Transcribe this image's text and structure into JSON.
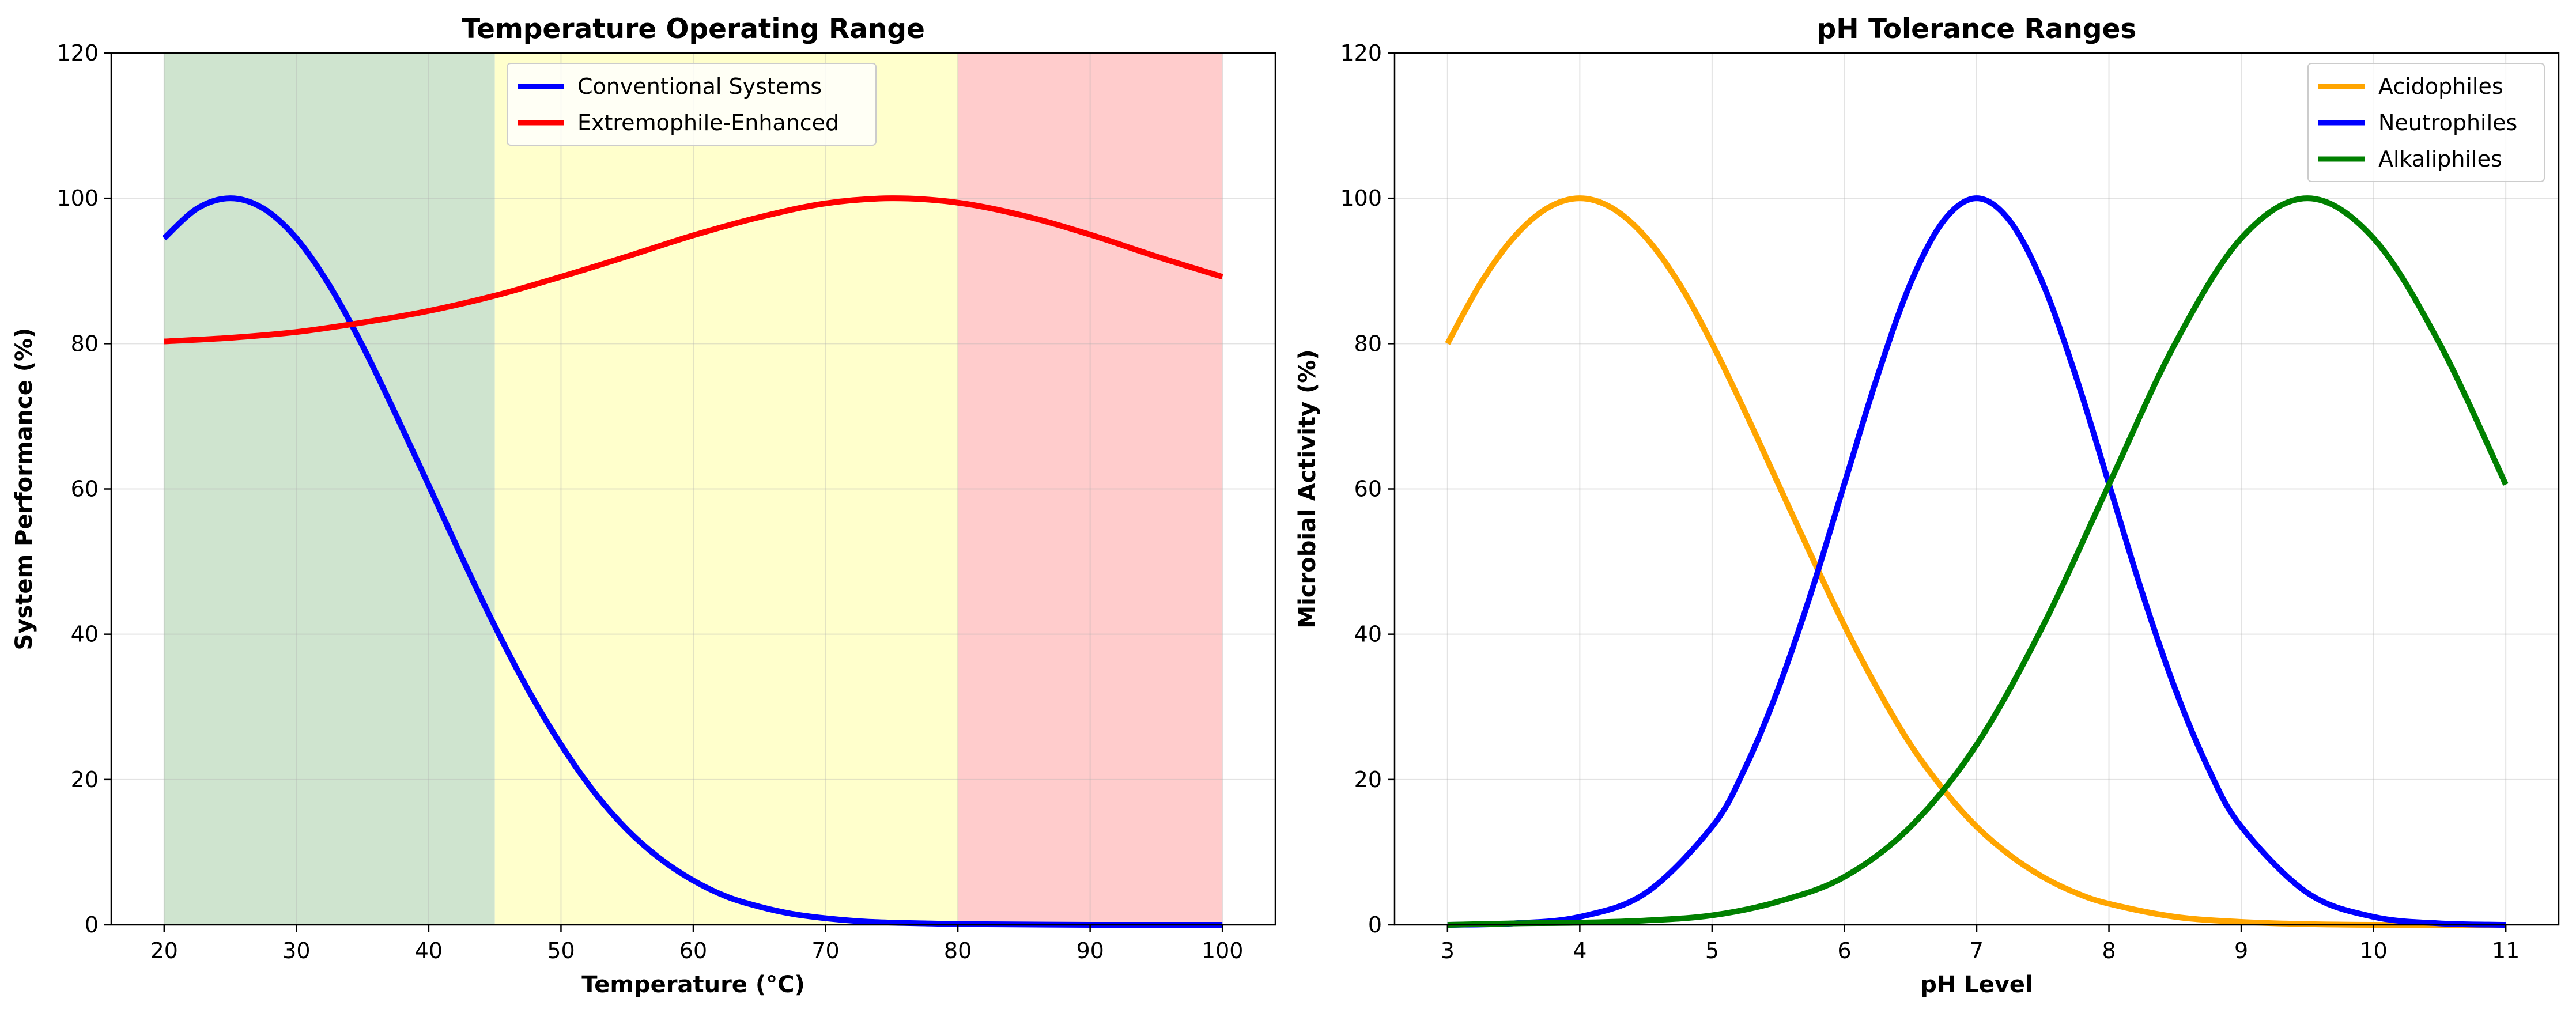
{
  "chart_data": [
    {
      "type": "line",
      "title": "Temperature Operating Range",
      "xlabel": "Temperature (°C)",
      "ylabel": "System Performance (%)",
      "xlim": [
        16,
        104
      ],
      "ylim": [
        0,
        120
      ],
      "xticks": [
        20,
        30,
        40,
        50,
        60,
        70,
        80,
        90,
        100
      ],
      "yticks": [
        0,
        20,
        40,
        60,
        80,
        100,
        120
      ],
      "grid": true,
      "legend_position": "top-center",
      "bands": [
        {
          "x0": 20,
          "x1": 45,
          "color": "#cfe4cf"
        },
        {
          "x0": 45,
          "x1": 80,
          "color": "#ffffcc"
        },
        {
          "x0": 80,
          "x1": 100,
          "color": "#ffcccc"
        }
      ],
      "series": [
        {
          "name": "Conventional Systems",
          "color": "#0000ff",
          "x": [
            20,
            22.5,
            25,
            27.5,
            30,
            32.5,
            35,
            37.5,
            40,
            42.5,
            45,
            47.5,
            50,
            52.5,
            55,
            57.5,
            60,
            62.5,
            65,
            67.5,
            70,
            72.5,
            75,
            77.5,
            80,
            85,
            90,
            95,
            100
          ],
          "values": [
            94.5,
            98.6,
            100,
            98.6,
            94.5,
            88,
            79.7,
            70.3,
            60.5,
            50.6,
            41.1,
            32.4,
            24.8,
            18.3,
            13.1,
            9.1,
            6.1,
            3.9,
            2.5,
            1.5,
            0.9,
            0.5,
            0.3,
            0.2,
            0.1,
            0.05,
            0,
            0,
            0
          ]
        },
        {
          "name": "Extremophile-Enhanced",
          "color": "#ff0000",
          "x": [
            20,
            25,
            30,
            35,
            40,
            45,
            50,
            55,
            60,
            65,
            70,
            75,
            80,
            85,
            90,
            95,
            100
          ],
          "values": [
            80.3,
            80.8,
            81.6,
            82.9,
            84.5,
            86.6,
            89.2,
            92,
            94.9,
            97.4,
            99.3,
            100,
            99.4,
            97.6,
            95,
            92,
            89.2
          ]
        }
      ]
    },
    {
      "type": "line",
      "title": "pH Tolerance Ranges",
      "xlabel": "pH Level",
      "ylabel": "Microbial Activity (%)",
      "xlim": [
        2.6,
        11.4
      ],
      "ylim": [
        0,
        120
      ],
      "xticks": [
        3,
        4,
        5,
        6,
        7,
        8,
        9,
        10,
        11
      ],
      "yticks": [
        0,
        20,
        40,
        60,
        80,
        100,
        120
      ],
      "grid": true,
      "legend_position": "top-right",
      "series": [
        {
          "name": "Acidophiles",
          "color": "#ffa500",
          "x": [
            3,
            3.25,
            3.5,
            3.75,
            4,
            4.25,
            4.5,
            4.75,
            5,
            5.25,
            5.5,
            5.75,
            6,
            6.25,
            6.5,
            6.75,
            7,
            7.25,
            7.5,
            7.75,
            8,
            8.5,
            9,
            9.5,
            10,
            10.5,
            11
          ],
          "values": [
            80,
            88.3,
            94.6,
            98.6,
            100,
            98.6,
            94.6,
            88.3,
            80,
            70.6,
            60.7,
            50.8,
            41.2,
            32.5,
            24.8,
            18.6,
            13.5,
            9.6,
            6.6,
            4.4,
            2.9,
            1.1,
            0.4,
            0.1,
            0,
            0,
            0
          ]
        },
        {
          "name": "Neutrophiles",
          "color": "#0000ff",
          "x": [
            3,
            3.5,
            4,
            4.5,
            5,
            5.25,
            5.5,
            5.75,
            6,
            6.25,
            6.5,
            6.75,
            7,
            7.25,
            7.5,
            7.75,
            8,
            8.25,
            8.5,
            8.75,
            9,
            9.5,
            10,
            10.5,
            11
          ],
          "values": [
            0,
            0.2,
            1.1,
            4.4,
            13.5,
            21.6,
            32.5,
            45.8,
            60.7,
            75.5,
            88.3,
            96.9,
            100,
            96.9,
            88.3,
            75.5,
            60.7,
            45.8,
            32.5,
            21.6,
            13.5,
            4.4,
            1.1,
            0.2,
            0
          ]
        },
        {
          "name": "Alkaliphiles",
          "color": "#008000",
          "x": [
            3,
            3.5,
            4,
            4.5,
            5,
            5.5,
            6,
            6.5,
            7,
            7.5,
            8,
            8.5,
            9,
            9.5,
            10,
            10.5,
            11
          ],
          "values": [
            0,
            0.2,
            0.3,
            0.6,
            1.3,
            3.2,
            6.6,
            13.5,
            24.8,
            41.1,
            60.6,
            80,
            94.5,
            100,
            94.5,
            80,
            60.6
          ]
        }
      ]
    }
  ]
}
